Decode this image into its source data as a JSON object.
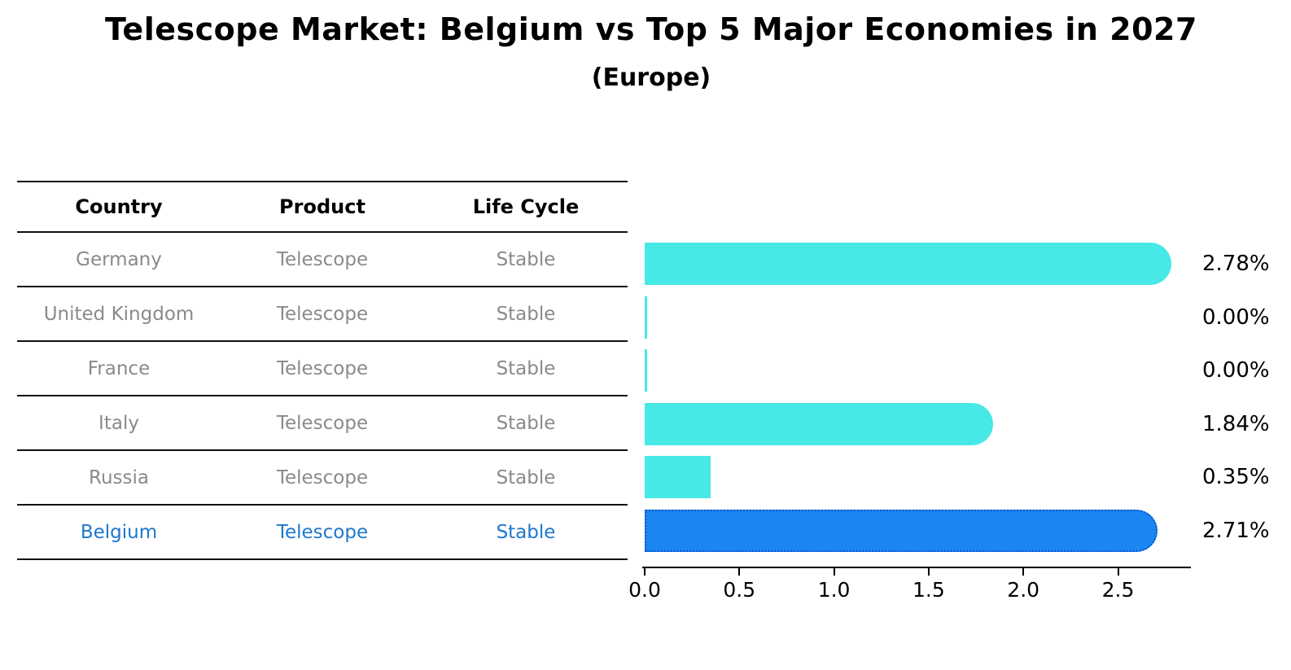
{
  "title": "Telescope Market: Belgium vs Top 5 Major Economies in 2027",
  "subtitle": "(Europe)",
  "table": {
    "headers": [
      "Country",
      "Product",
      "Life Cycle"
    ],
    "rows": [
      {
        "country": "Germany",
        "product": "Telescope",
        "life_cycle": "Stable",
        "highlighted": false
      },
      {
        "country": "United Kingdom",
        "product": "Telescope",
        "life_cycle": "Stable",
        "highlighted": false
      },
      {
        "country": "France",
        "product": "Telescope",
        "life_cycle": "Stable",
        "highlighted": false
      },
      {
        "country": "Italy",
        "product": "Telescope",
        "life_cycle": "Stable",
        "highlighted": false
      },
      {
        "country": "Russia",
        "product": "Telescope",
        "life_cycle": "Stable",
        "highlighted": false
      },
      {
        "country": "Belgium",
        "product": "Telescope",
        "life_cycle": "Stable",
        "highlighted": true
      }
    ]
  },
  "chart_data": {
    "type": "bar",
    "orientation": "horizontal",
    "title": "Telescope Market: Belgium vs Top 5 Major Economies in 2027",
    "subtitle": "(Europe)",
    "categories": [
      "Germany",
      "United Kingdom",
      "France",
      "Italy",
      "Russia",
      "Belgium"
    ],
    "values": [
      2.78,
      0.0,
      0.0,
      1.84,
      0.35,
      2.71
    ],
    "value_labels": [
      "2.78%",
      "0.00%",
      "0.00%",
      "1.84%",
      "0.35%",
      "2.71%"
    ],
    "highlight_index": 5,
    "x_ticks": [
      "0.0",
      "0.5",
      "1.0",
      "1.5",
      "2.0",
      "2.5"
    ],
    "xlim": [
      0.0,
      2.9
    ],
    "grid": false,
    "legend": false,
    "unit": "%"
  },
  "colors": {
    "bar_default": "#47e8e6",
    "bar_highlight": "#1b86f2",
    "highlight_border": "#0a58c8",
    "highlight_text": "#1e78cd",
    "row_text": "#8a8a8a",
    "header_text": "#000000"
  }
}
